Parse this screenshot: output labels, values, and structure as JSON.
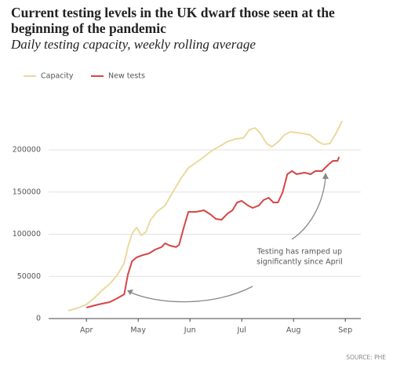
{
  "chart_data": {
    "type": "line",
    "title": "Current testing levels in the UK dwarf those seen at the beginning of the pandemic",
    "subtitle": "Daily testing capacity, weekly rolling average",
    "source": "SOURCE: PHE",
    "annotation": [
      "Testing has ramped up",
      "significantly since April"
    ],
    "xlim": [
      3.27,
      9.3
    ],
    "xticks": [
      {
        "value": 4,
        "label": "Apr"
      },
      {
        "value": 5,
        "label": "May"
      },
      {
        "value": 6,
        "label": "Jun"
      },
      {
        "value": 7,
        "label": "Jul"
      },
      {
        "value": 8,
        "label": "Aug"
      },
      {
        "value": 9,
        "label": "Sep"
      }
    ],
    "ylim": [
      0,
      240000
    ],
    "yticks": [
      0,
      50000,
      100000,
      150000,
      200000
    ],
    "grid": true,
    "legend": "top-left",
    "series": [
      {
        "name": "Capacity",
        "color": "#ebd9a0",
        "x": [
          3.65,
          3.85,
          4.0,
          4.15,
          4.3,
          4.45,
          4.6,
          4.73,
          4.8,
          4.88,
          4.97,
          5.06,
          5.15,
          5.24,
          5.36,
          5.52,
          5.67,
          5.82,
          5.97,
          6.12,
          6.27,
          6.42,
          6.58,
          6.73,
          6.88,
          7.03,
          7.15,
          7.26,
          7.36,
          7.48,
          7.58,
          7.71,
          7.82,
          7.94,
          8.17,
          8.32,
          8.47,
          8.58,
          8.7,
          8.82,
          8.94
        ],
        "values": [
          9300,
          13000,
          16700,
          24200,
          33500,
          41000,
          52000,
          66000,
          84700,
          100500,
          108000,
          98600,
          103000,
          117000,
          126500,
          134000,
          150000,
          165600,
          178600,
          185000,
          191600,
          199000,
          204600,
          210000,
          213000,
          214000,
          224000,
          226000,
          219500,
          207400,
          203700,
          210000,
          217700,
          221400,
          219500,
          217700,
          210000,
          206500,
          207400,
          219500,
          234400
        ]
      },
      {
        "name": "New tests",
        "color": "#d64545",
        "x": [
          4.0,
          4.23,
          4.45,
          4.6,
          4.73,
          4.8,
          4.88,
          4.97,
          5.09,
          5.21,
          5.33,
          5.45,
          5.52,
          5.61,
          5.73,
          5.79,
          5.88,
          5.97,
          6.12,
          6.27,
          6.39,
          6.5,
          6.61,
          6.73,
          6.82,
          6.91,
          7.0,
          7.12,
          7.21,
          7.33,
          7.42,
          7.52,
          7.61,
          7.7,
          7.79,
          7.88,
          7.97,
          8.06,
          8.21,
          8.33,
          8.42,
          8.55,
          8.67,
          8.76,
          8.85,
          8.88
        ],
        "values": [
          13000,
          16700,
          19500,
          24200,
          28800,
          52000,
          68000,
          72600,
          75300,
          77200,
          81900,
          84700,
          89300,
          86500,
          84700,
          87400,
          108000,
          126500,
          126500,
          128400,
          123700,
          118100,
          117200,
          124700,
          128400,
          137700,
          139500,
          134000,
          131200,
          134000,
          140500,
          143300,
          137700,
          137700,
          149800,
          171200,
          174900,
          171200,
          173000,
          171200,
          174900,
          174900,
          182300,
          187000,
          187000,
          191600
        ]
      }
    ]
  }
}
